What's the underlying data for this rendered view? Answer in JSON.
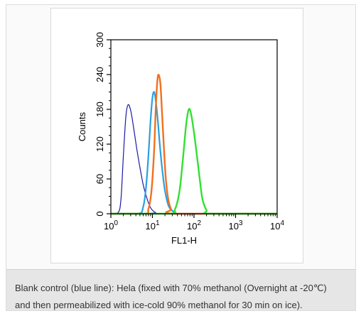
{
  "chart_data": {
    "type": "line",
    "title": "",
    "xlabel": "FL1-H",
    "ylabel": "Counts",
    "x_scale": "log",
    "xlim": [
      1,
      10000
    ],
    "ylim": [
      0,
      300
    ],
    "x_ticks": [
      {
        "value": 1,
        "base": "10",
        "exp": "0"
      },
      {
        "value": 10,
        "base": "10",
        "exp": "1"
      },
      {
        "value": 100,
        "base": "10",
        "exp": "2"
      },
      {
        "value": 1000,
        "base": "10",
        "exp": "3"
      },
      {
        "value": 10000,
        "base": "10",
        "exp": "4"
      }
    ],
    "y_ticks": [
      "0",
      "60",
      "120",
      "180",
      "240",
      "300"
    ],
    "grid": false,
    "series": [
      {
        "color": "#1a1aa6",
        "line_width": 1.2,
        "points": [
          [
            1,
            0
          ],
          [
            1.5,
            2
          ],
          [
            1.75,
            25
          ],
          [
            2.0,
            100
          ],
          [
            2.3,
            168
          ],
          [
            2.6,
            188
          ],
          [
            3.0,
            178
          ],
          [
            3.5,
            150
          ],
          [
            4.2,
            112
          ],
          [
            5.0,
            80
          ],
          [
            6.0,
            50
          ],
          [
            7.0,
            32
          ],
          [
            8.5,
            14
          ],
          [
            10,
            6
          ],
          [
            12,
            2
          ],
          [
            15,
            0
          ],
          [
            10000,
            0
          ]
        ]
      },
      {
        "color": "#2a9fe0",
        "line_width": 2.2,
        "points": [
          [
            1,
            0
          ],
          [
            4.5,
            0
          ],
          [
            6.0,
            12
          ],
          [
            7.0,
            45
          ],
          [
            8.0,
            100
          ],
          [
            9.0,
            160
          ],
          [
            10.0,
            200
          ],
          [
            11.0,
            210
          ],
          [
            12.0,
            195
          ],
          [
            13.5,
            160
          ],
          [
            15.0,
            120
          ],
          [
            17.0,
            80
          ],
          [
            20.0,
            40
          ],
          [
            25.0,
            12
          ],
          [
            35.0,
            2
          ],
          [
            45.0,
            0
          ],
          [
            10000,
            0
          ]
        ]
      },
      {
        "color": "#f07020",
        "line_width": 2.4,
        "points": [
          [
            1,
            0
          ],
          [
            6.5,
            0
          ],
          [
            8.0,
            8
          ],
          [
            9.5,
            40
          ],
          [
            11.0,
            110
          ],
          [
            12.0,
            180
          ],
          [
            13.0,
            225
          ],
          [
            14.0,
            240
          ],
          [
            15.5,
            225
          ],
          [
            17.0,
            175
          ],
          [
            19.0,
            110
          ],
          [
            21.0,
            60
          ],
          [
            24.0,
            25
          ],
          [
            28.0,
            8
          ],
          [
            34.0,
            0
          ],
          [
            10000,
            0
          ]
        ]
      },
      {
        "color": "#33e033",
        "line_width": 2.4,
        "points": [
          [
            1,
            0
          ],
          [
            25,
            0
          ],
          [
            35,
            8
          ],
          [
            45,
            40
          ],
          [
            55,
            100
          ],
          [
            65,
            155
          ],
          [
            75,
            180
          ],
          [
            85,
            172
          ],
          [
            100,
            140
          ],
          [
            120,
            95
          ],
          [
            140,
            55
          ],
          [
            160,
            25
          ],
          [
            200,
            6
          ],
          [
            250,
            0
          ],
          [
            10000,
            0
          ]
        ]
      }
    ]
  },
  "caption": {
    "line1": "Blank control (blue line): Hela (fixed with 70% methanol (Overnight at -20℃)",
    "line2": "and then permeabilized with ice-cold 90% methanol for 30 min on ice)."
  }
}
